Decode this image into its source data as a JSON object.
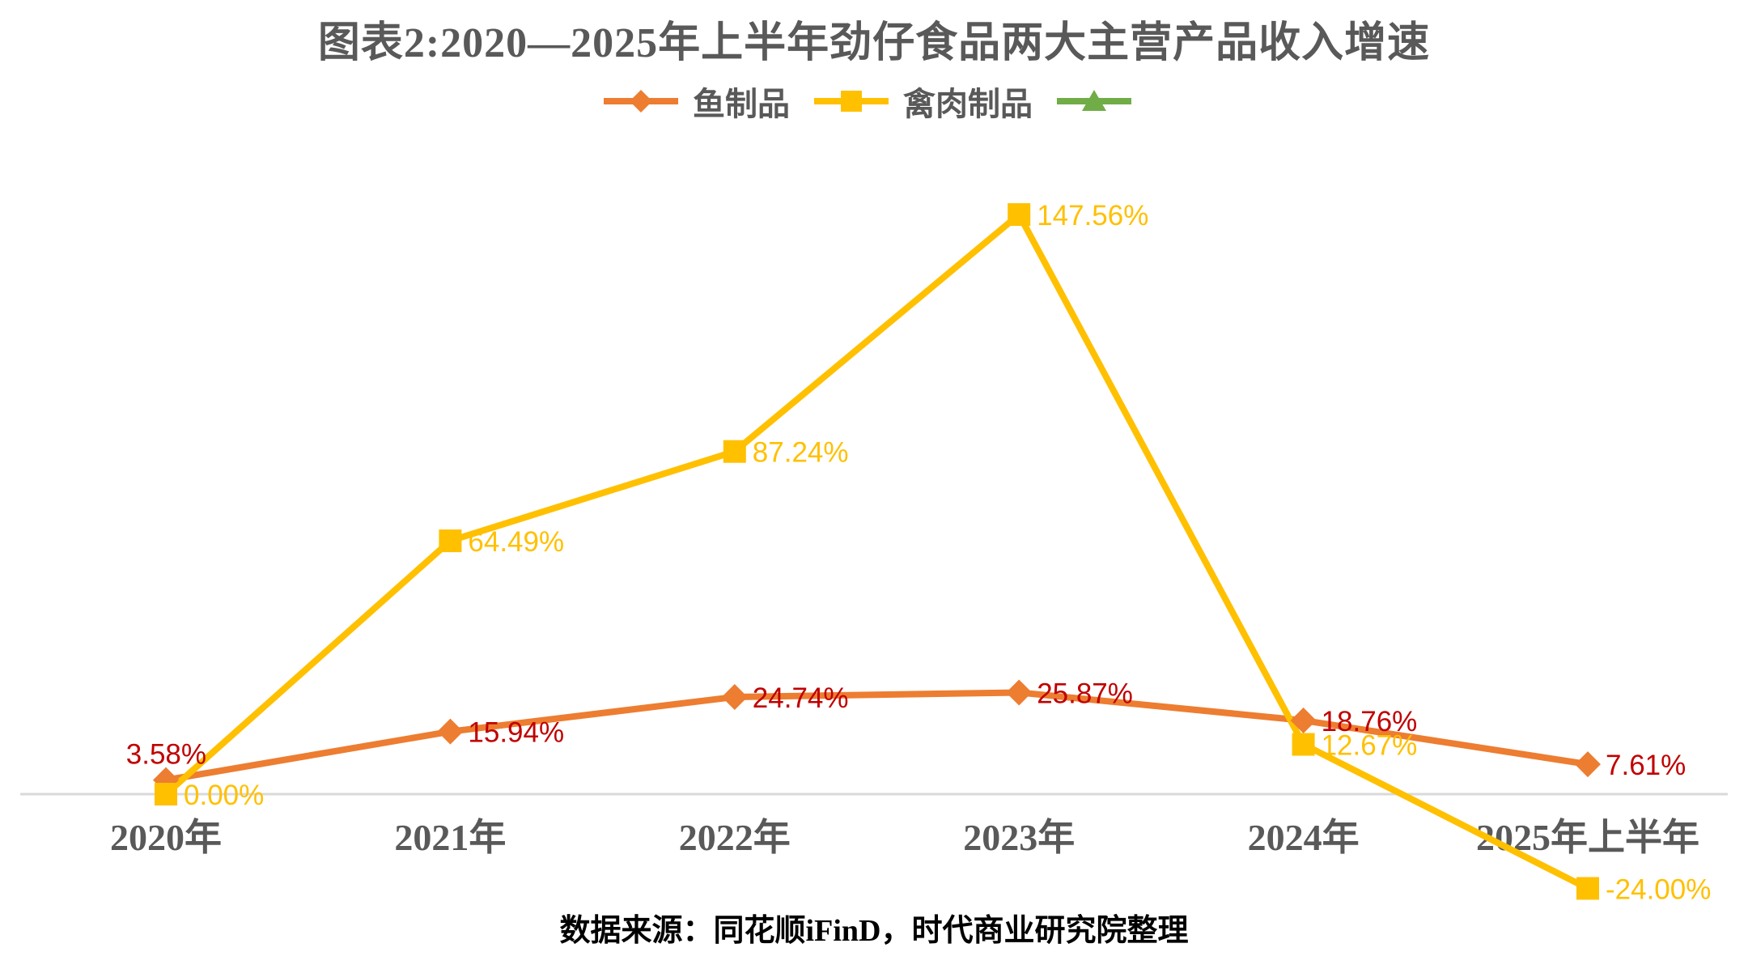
{
  "title": "图表2:2020—2025年上半年劲仔食品两大主营产品收入增速",
  "footer": {
    "source_note": "数据来源：同花顺iFinD，时代商业研究院整理"
  },
  "legend": {
    "items": [
      {
        "label": "鱼制品",
        "marker": "diamond",
        "color": "#ED7D31"
      },
      {
        "label": "禽肉制品",
        "marker": "square",
        "color": "#FFC000"
      },
      {
        "label": "",
        "marker": "triangle",
        "color": "#70AD47"
      }
    ]
  },
  "colors": {
    "fish_line": "#ED7D31",
    "fish_label": "#C00000",
    "poultry_line": "#FFC000",
    "poultry_label": "#FFC000",
    "third_series": "#70AD47",
    "axis_line": "#D9D9D9",
    "axis_text": "#595959",
    "title_text": "#595959"
  },
  "chart_data": {
    "type": "line",
    "title": "图表2:2020—2025年上半年劲仔食品两大主营产品收入增速",
    "categories": [
      "2020年",
      "2021年",
      "2022年",
      "2023年",
      "2024年",
      "2025年上半年"
    ],
    "series": [
      {
        "name": "鱼制品",
        "marker": "diamond",
        "color": "#ED7D31",
        "label_color": "#C00000",
        "values": [
          3.58,
          15.94,
          24.74,
          25.87,
          18.76,
          7.61
        ],
        "labels": [
          "3.58%",
          "15.94%",
          "24.74%",
          "25.87%",
          "18.76%",
          "7.61%"
        ]
      },
      {
        "name": "禽肉制品",
        "marker": "square",
        "color": "#FFC000",
        "label_color": "#FFC000",
        "values": [
          0.0,
          64.49,
          87.24,
          147.56,
          12.67,
          -24.0
        ],
        "labels": [
          "0.00%",
          "64.49%",
          "87.24%",
          "147.56%",
          "12.67%",
          "-24.00%"
        ]
      }
    ],
    "xlabel": "",
    "ylabel": "",
    "unit": "%",
    "ylim": [
      -30,
      165
    ],
    "grid": false,
    "y_axis_visible": false,
    "baseline_value": 0,
    "legend_position": "top"
  }
}
